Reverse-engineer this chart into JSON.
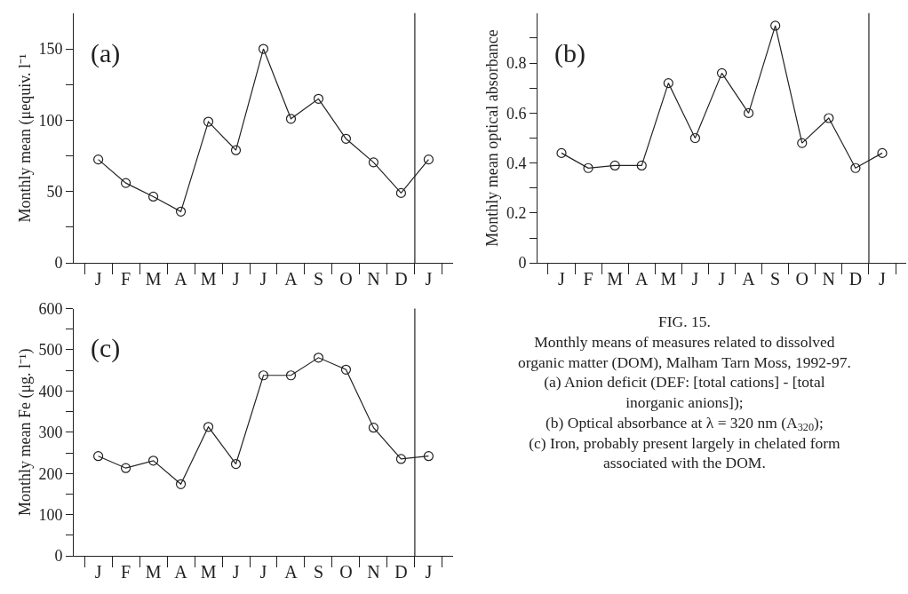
{
  "chart_data": [
    {
      "type": "line",
      "ylabel": "Monthly mean (μequiv. l⁻¹",
      "annotations": [
        "(a)"
      ],
      "marker": "circle",
      "line_style": "solid",
      "categories": [
        "J",
        "F",
        "M",
        "A",
        "M",
        "J",
        "J",
        "A",
        "S",
        "O",
        "N",
        "D",
        "J"
      ],
      "series": [
        {
          "color": "#222222",
          "values": [
            72.5,
            56,
            46.5,
            36,
            99,
            79,
            150,
            101,
            115,
            87,
            70.5,
            49,
            72.5
          ]
        }
      ],
      "ylim": [
        0,
        175
      ],
      "yticks": [
        0,
        {
          "value": 25,
          "label": null
        },
        50,
        {
          "value": 75,
          "label": null
        },
        100,
        {
          "value": 125,
          "label": null
        },
        150
      ]
    },
    {
      "type": "line",
      "ylabel": "Monthly mean optical absorbance",
      "annotations": [
        "(b)"
      ],
      "marker": "circle",
      "line_style": "solid",
      "categories": [
        "J",
        "F",
        "M",
        "A",
        "M",
        "J",
        "J",
        "A",
        "S",
        "O",
        "N",
        "D",
        "J"
      ],
      "series": [
        {
          "color": "#222222",
          "values": [
            0.44,
            0.38,
            0.39,
            0.39,
            0.72,
            0.5,
            0.76,
            0.6,
            0.95,
            0.48,
            0.58,
            0.38,
            0.44
          ]
        }
      ],
      "ylim": [
        0,
        1
      ],
      "yticks": [
        0,
        {
          "value": 0.1,
          "label": null
        },
        0.2,
        {
          "value": 0.3,
          "label": null
        },
        0.4,
        {
          "value": 0.5,
          "label": null
        },
        0.6,
        {
          "value": 0.7,
          "label": null
        },
        0.8,
        {
          "value": 0.9,
          "label": null
        }
      ]
    },
    {
      "type": "line",
      "ylabel": "Monthly mean Fe (μg. l⁻¹)",
      "annotations": [
        "(c)"
      ],
      "marker": "circle",
      "line_style": "solid",
      "categories": [
        "J",
        "F",
        "M",
        "A",
        "M",
        "J",
        "J",
        "A",
        "S",
        "O",
        "N",
        "D",
        "J"
      ],
      "series": [
        {
          "color": "#222222",
          "values": [
            242,
            213,
            231,
            174,
            313,
            223,
            438,
            438,
            481,
            452,
            311,
            235,
            242
          ]
        }
      ],
      "ylim": [
        0,
        600
      ],
      "yticks": [
        0,
        {
          "value": 50,
          "label": null
        },
        100,
        {
          "value": 150,
          "label": null
        },
        200,
        {
          "value": 250,
          "label": null
        },
        300,
        {
          "value": 350,
          "label": null
        },
        400,
        {
          "value": 450,
          "label": null
        },
        500,
        {
          "value": 550,
          "label": null
        },
        600
      ]
    },
    {
      "type": "other",
      "annotations": [
        "FIG. 15.",
        "Monthly means of measures related to dissolved",
        "organic matter (DOM), Malham Tarn Moss, 1992-97.",
        "(a) Anion deficit (DEF: [total cations] - [total",
        "inorganic anions]);",
        "(b) Optical absorbance at λ = 320 nm (A$_{320}$);",
        "(c) Iron, probably present largely in chelated form",
        "associated with the DOM."
      ]
    }
  ]
}
